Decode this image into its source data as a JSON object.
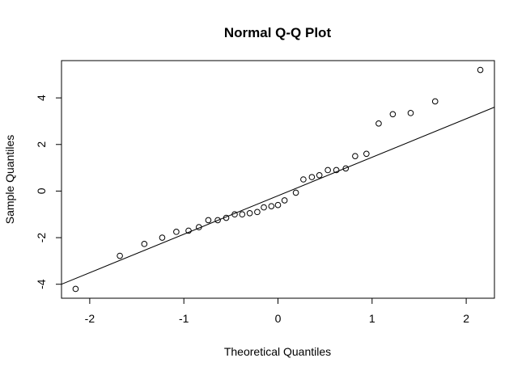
{
  "chart_data": {
    "type": "scatter",
    "title": "Normal Q-Q Plot",
    "xlabel": "Theoretical Quantiles",
    "ylabel": "Sample Quantiles",
    "xlim": [
      -2.3,
      2.3
    ],
    "ylim": [
      -4.6,
      5.6
    ],
    "x_ticks": [
      -2,
      -1,
      0,
      1,
      2
    ],
    "y_ticks": [
      -4,
      -2,
      0,
      2,
      4
    ],
    "grid": false,
    "reference_line": {
      "x1": -2.3,
      "y1": -4.0,
      "x2": 2.3,
      "y2": 3.6
    },
    "points": [
      {
        "x": -2.15,
        "y": -4.2
      },
      {
        "x": -1.68,
        "y": -2.78
      },
      {
        "x": -1.42,
        "y": -2.27
      },
      {
        "x": -1.23,
        "y": -2.0
      },
      {
        "x": -1.08,
        "y": -1.75
      },
      {
        "x": -0.95,
        "y": -1.7
      },
      {
        "x": -0.84,
        "y": -1.55
      },
      {
        "x": -0.74,
        "y": -1.25
      },
      {
        "x": -0.64,
        "y": -1.25
      },
      {
        "x": -0.55,
        "y": -1.15
      },
      {
        "x": -0.46,
        "y": -1.0
      },
      {
        "x": -0.38,
        "y": -1.0
      },
      {
        "x": -0.3,
        "y": -0.95
      },
      {
        "x": -0.22,
        "y": -0.9
      },
      {
        "x": -0.15,
        "y": -0.7
      },
      {
        "x": -0.07,
        "y": -0.65
      },
      {
        "x": 0.0,
        "y": -0.6
      },
      {
        "x": 0.07,
        "y": -0.4
      },
      {
        "x": 0.19,
        "y": -0.07
      },
      {
        "x": 0.27,
        "y": 0.5
      },
      {
        "x": 0.36,
        "y": 0.6
      },
      {
        "x": 0.44,
        "y": 0.68
      },
      {
        "x": 0.53,
        "y": 0.9
      },
      {
        "x": 0.62,
        "y": 0.9
      },
      {
        "x": 0.72,
        "y": 0.97
      },
      {
        "x": 0.82,
        "y": 1.5
      },
      {
        "x": 0.94,
        "y": 1.6
      },
      {
        "x": 1.07,
        "y": 2.9
      },
      {
        "x": 1.22,
        "y": 3.3
      },
      {
        "x": 1.41,
        "y": 3.35
      },
      {
        "x": 1.67,
        "y": 3.85
      },
      {
        "x": 2.15,
        "y": 5.2
      }
    ]
  }
}
